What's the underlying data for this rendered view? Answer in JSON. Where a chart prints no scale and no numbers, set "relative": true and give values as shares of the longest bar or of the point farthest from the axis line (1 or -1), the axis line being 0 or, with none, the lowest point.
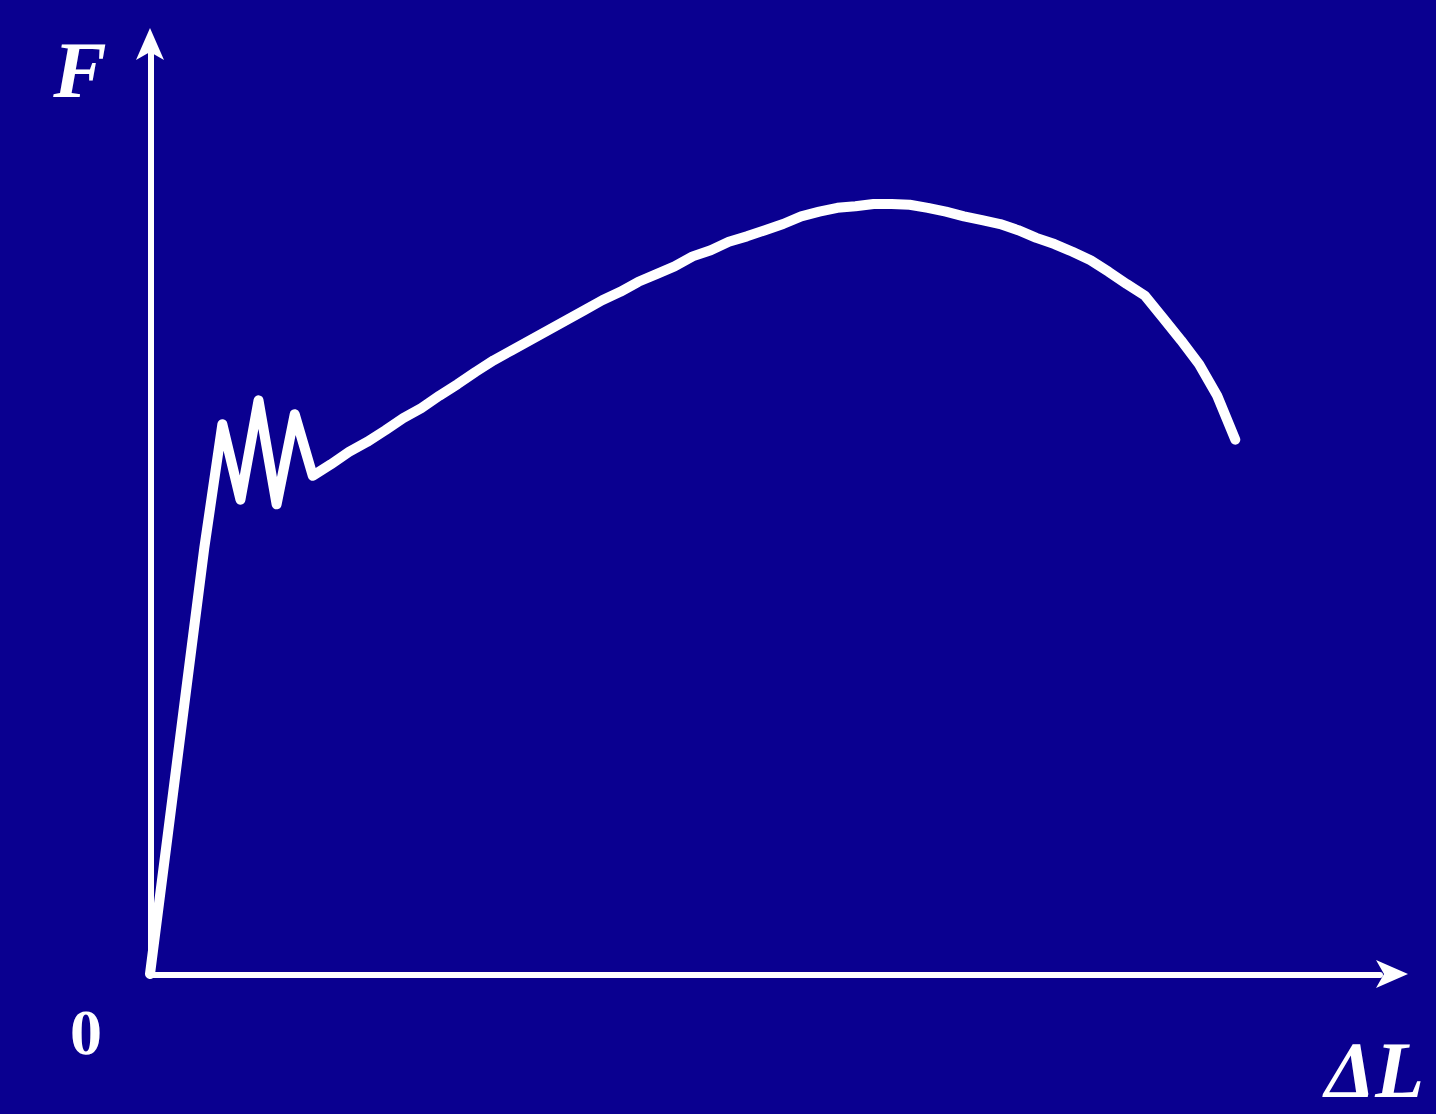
{
  "chart_data": {
    "type": "line",
    "relative": true,
    "xlabel": "ΔL",
    "ylabel": "F",
    "annotations": [
      "0"
    ],
    "grid": false,
    "marker": "none",
    "line_style": "solid",
    "categories": [
      null,
      null,
      null,
      null,
      null,
      null,
      null,
      null,
      null,
      null,
      null,
      null,
      null,
      null,
      null,
      null,
      null,
      null,
      null,
      null,
      null,
      null,
      null,
      null,
      null,
      null,
      null,
      null,
      null,
      null,
      null,
      null,
      null,
      null,
      null,
      null,
      null,
      null,
      null,
      null,
      null,
      null,
      null,
      null,
      null,
      null,
      null,
      null,
      null,
      null,
      null,
      null,
      null,
      null,
      null,
      null,
      null,
      null,
      null,
      null,
      null,
      null,
      null,
      null,
      null,
      null,
      null,
      null,
      null
    ],
    "series": [
      {
        "color": "#ffffff",
        "values": [
          0,
          0.184,
          0.369,
          0.553,
          0.714,
          0.616,
          0.745,
          0.61,
          0.727,
          0.647,
          0.662,
          0.678,
          0.691,
          0.706,
          0.722,
          0.735,
          0.751,
          0.766,
          0.782,
          0.797,
          0.81,
          0.823,
          0.836,
          0.849,
          0.862,
          0.875,
          0.886,
          0.899,
          0.909,
          0.919,
          0.932,
          0.94,
          0.951,
          0.958,
          0.966,
          0.974,
          0.984,
          0.99,
          0.995,
          0.997,
          1,
          1,
          0.999,
          0.995,
          0.99,
          0.984,
          0.979,
          0.974,
          0.966,
          0.956,
          0.948,
          0.938,
          0.927,
          0.912,
          0.896,
          0.881,
          0.852,
          0.823,
          0.792,
          0.751,
          0.694,
          null,
          null,
          null,
          null,
          null,
          null,
          null,
          null
        ]
      }
    ]
  }
}
